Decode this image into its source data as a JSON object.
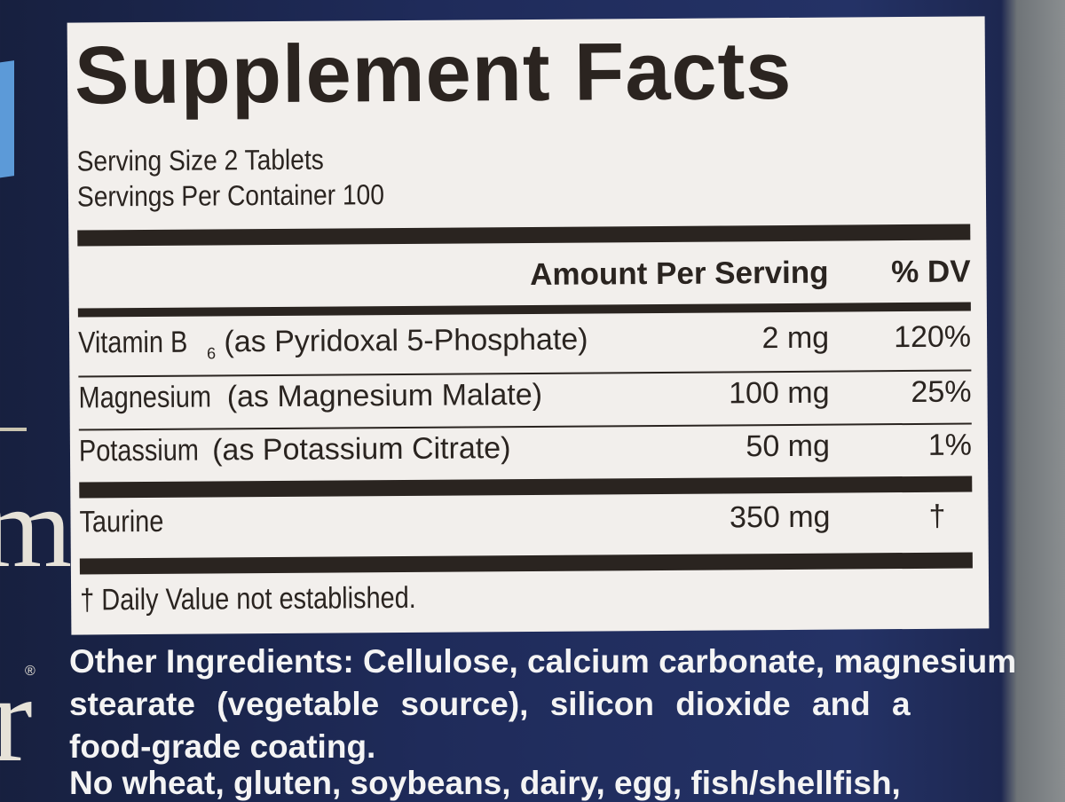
{
  "panel": {
    "title": "Supplement Facts",
    "serving_size": "Serving Size 2 Tablets",
    "servings_per_container": "Servings Per Container 100",
    "header_amount": "Amount Per Serving",
    "header_dv": "% DV",
    "rows": [
      {
        "name_prefix": "Vitamin B",
        "subscript": "6",
        "name_rest": " (as Pyridoxal 5-Phosphate)",
        "amount": "2 mg",
        "dv": "120%"
      },
      {
        "name_prefix": "Magnesium",
        "subscript": "",
        "name_rest": " (as Magnesium Malate)",
        "amount": "100 mg",
        "dv": "25%"
      },
      {
        "name_prefix": "Potassium",
        "subscript": "",
        "name_rest": " (as Potassium Citrate)",
        "amount": "50 mg",
        "dv": "1%"
      },
      {
        "name_prefix": "Taurine",
        "subscript": "",
        "name_rest": "",
        "amount": "350 mg",
        "dv": "†"
      }
    ],
    "footnote": "† Daily Value not established."
  },
  "other_ingredients": {
    "lines": [
      "Other Ingredients: Cellulose, calcium carbonate, magnesium",
      "stearate (vegetable source), silicon dioxide and a",
      "food-grade coating."
    ]
  },
  "allergen_partial": "No wheat, gluten, soybeans, dairy, egg, fish/shellfish,",
  "colors": {
    "background": "#1f2b5a",
    "panel": "#f2efec",
    "ink": "#2a2420"
  }
}
